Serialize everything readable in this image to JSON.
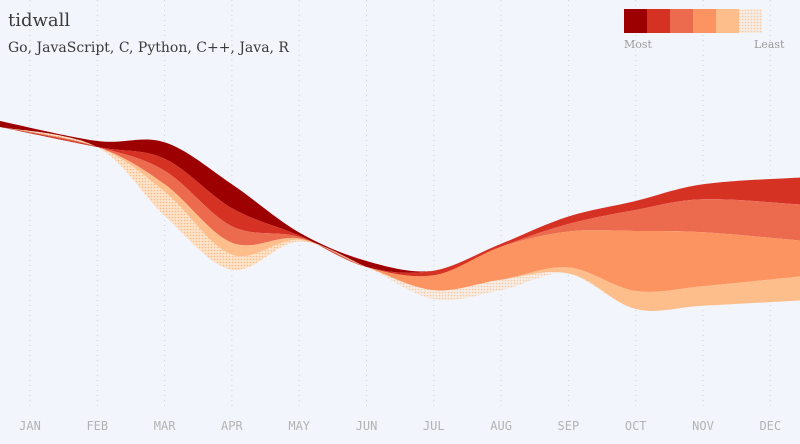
{
  "chart_data": {
    "type": "area",
    "stacked": true,
    "title": "tidwall",
    "subtitle": "Go, JavaScript, C, Python, C++, Java, R",
    "categories": [
      "JAN",
      "FEB",
      "MAR",
      "APR",
      "MAY",
      "JUN",
      "JUL",
      "AUG",
      "SEP",
      "OCT",
      "NOV",
      "DEC"
    ],
    "series": [
      {
        "values": [
          0,
          0,
          11,
          16,
          2,
          0,
          0,
          0,
          0,
          0,
          0,
          0
        ]
      },
      {
        "values": [
          0,
          0,
          8,
          12,
          1,
          0,
          3,
          2,
          5,
          6,
          10,
          18
        ]
      },
      {
        "values": [
          0,
          0,
          9,
          11,
          1,
          0,
          0,
          0,
          5,
          14,
          22,
          24
        ]
      },
      {
        "values": [
          0,
          0,
          0,
          0,
          0,
          0,
          10,
          22,
          24,
          40,
          36,
          24
        ]
      },
      {
        "values": [
          0,
          0,
          5,
          8,
          1,
          0,
          0,
          0,
          4,
          12,
          13,
          16
        ]
      },
      {
        "values": [
          0,
          0,
          16,
          10,
          1,
          0,
          0,
          0,
          0,
          0,
          0,
          0
        ]
      },
      {
        "values": [
          0,
          0,
          0,
          0,
          0,
          0,
          6,
          7,
          0,
          0,
          0,
          0
        ]
      }
    ],
    "colors": [
      "#9d0000",
      "#d63224",
      "#ec6b4f",
      "#fc9462",
      "#fdbe8c",
      "#fdd5ab",
      "#fbdfc3"
    ],
    "legend": {
      "placement": "top-right",
      "low_label": "Most",
      "high_label": "Least"
    },
    "grid": {
      "vertical_dotted": true
    }
  }
}
